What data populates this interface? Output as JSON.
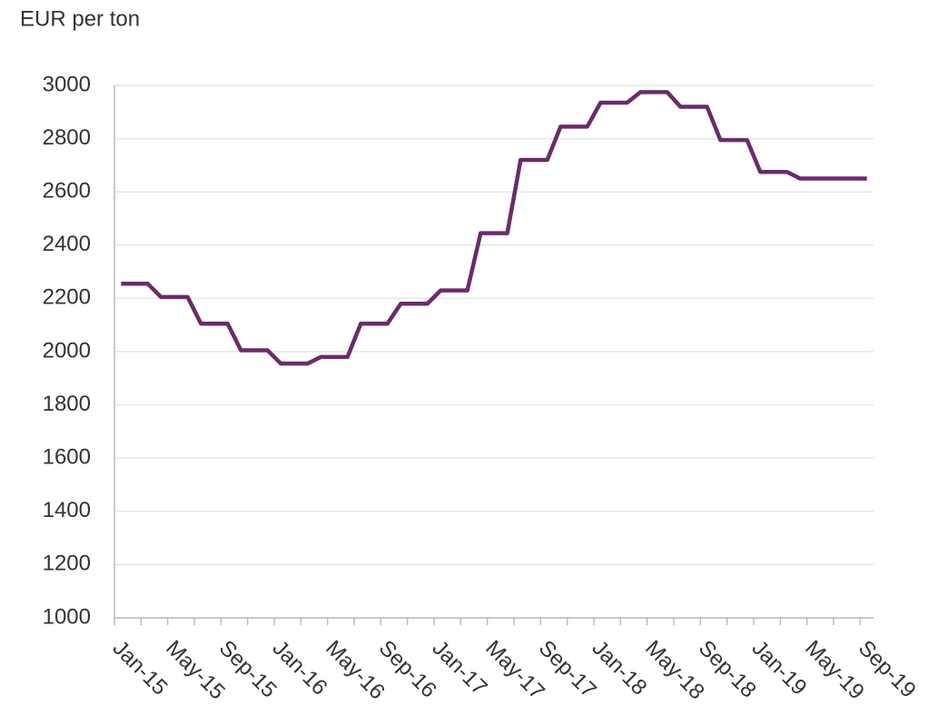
{
  "chart_data": {
    "type": "line",
    "title": "EUR per ton",
    "categories": [
      "Jan-15",
      null,
      null,
      null,
      "May-15",
      null,
      null,
      null,
      "Sep-15",
      null,
      null,
      null,
      "Jan-16",
      null,
      null,
      null,
      "May-16",
      null,
      null,
      null,
      "Sep-16",
      null,
      null,
      null,
      "Jan-17",
      null,
      null,
      null,
      "May-17",
      null,
      null,
      null,
      "Sep-17",
      null,
      null,
      null,
      "Jan-18",
      null,
      null,
      null,
      "May-18",
      null,
      null,
      null,
      "Sep-18",
      null,
      null,
      null,
      "Jan-19",
      null,
      null,
      null,
      "May-19",
      null,
      null,
      null,
      "Sep-19"
    ],
    "series": [
      {
        "name": null,
        "color": "#6a2b6b",
        "values": [
          2255,
          2255,
          2255,
          2205,
          2205,
          2205,
          2105,
          2105,
          2105,
          2005,
          2005,
          2005,
          1955,
          1955,
          1955,
          1980,
          1980,
          1980,
          2105,
          2105,
          2105,
          2180,
          2180,
          2180,
          2230,
          2230,
          2230,
          2445,
          2445,
          2445,
          2720,
          2720,
          2720,
          2845,
          2845,
          2845,
          2935,
          2935,
          2935,
          2975,
          2975,
          2975,
          2920,
          2920,
          2920,
          2795,
          2795,
          2795,
          2675,
          2675,
          2675,
          2650,
          2650,
          2650,
          2650,
          2650,
          2650
        ]
      }
    ],
    "ylim": [
      1000,
      3000
    ],
    "yticks": [
      1000,
      1200,
      1400,
      1600,
      1800,
      2000,
      2200,
      2400,
      2600,
      2800,
      3000
    ],
    "grid": true
  }
}
